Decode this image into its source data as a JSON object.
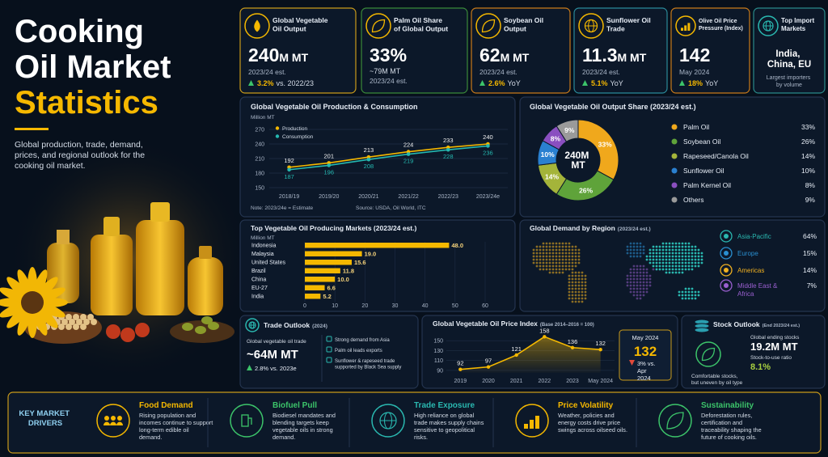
{
  "header": {
    "title_lines": [
      "Cooking",
      "Oil Market",
      "Statistics"
    ],
    "subtitle": "Global production, trade, demand, prices, and regional outlook for the cooking oil market."
  },
  "kpis": [
    {
      "title": "Global Vegetable Oil Output",
      "value": "240",
      "unit": "M MT",
      "note": "2023/24 est.",
      "change": "3.2%",
      "change_note": "vs. 2022/23"
    },
    {
      "title": "Palm Oil Share of Global Output",
      "value": "33%",
      "detail": "~79M MT",
      "note": "2023/24 est."
    },
    {
      "title": "Soybean Oil Output",
      "value": "62",
      "unit": "M MT",
      "note": "2023/24 est.",
      "change": "2.6%",
      "change_note": "YoY"
    },
    {
      "title": "Sunflower Oil Trade",
      "value": "11.3",
      "unit": "M MT",
      "note": "2023/24 est.",
      "change": "5.1%",
      "change_note": "YoY"
    },
    {
      "title": "Olive Oil Price Pressure (Index)",
      "value": "142",
      "note": "May 2024",
      "change": "18%",
      "change_note": "YoY"
    },
    {
      "title": "Top Import Markets",
      "value": "India, China, EU",
      "note": "Largest importers by volume"
    }
  ],
  "chart_data": [
    {
      "type": "line",
      "title": "Global Vegetable Oil Production & Consumption",
      "ylabel": "Million MT",
      "categories": [
        "2018/19",
        "2019/20",
        "2020/21",
        "2021/22",
        "2022/23",
        "2023/24e"
      ],
      "series": [
        {
          "name": "Production",
          "color": "#f5b800",
          "values": [
            192,
            201,
            213,
            224,
            233,
            240
          ]
        },
        {
          "name": "Consumption",
          "color": "#25b8b0",
          "values": [
            187,
            196,
            208,
            219,
            228,
            236
          ]
        }
      ],
      "ylim": [
        150,
        270
      ],
      "yticks": [
        150,
        180,
        210,
        240,
        270
      ],
      "grid": true,
      "legend": "upper left",
      "note": "Note: 2023/24e = Estimate",
      "source": "Source: USDA, Oil World, ITC"
    },
    {
      "type": "donut",
      "title": "Global Vegetable Oil Output Share (2023/24 est.)",
      "center_label": "240M MT",
      "categories": [
        "Palm Oil",
        "Soybean Oil",
        "Rapeseed/Canola Oil",
        "Sunflower Oil",
        "Palm Kernel Oil",
        "Others"
      ],
      "values": [
        33,
        26,
        14,
        10,
        8,
        9
      ],
      "value_labels": [
        "33%",
        "26%",
        "14%",
        "10%",
        "8%",
        "9%"
      ],
      "colors": [
        "#f0a81c",
        "#5fa33a",
        "#a4b43a",
        "#2a80d0",
        "#8a4fc0",
        "#9a9a9a"
      ]
    },
    {
      "type": "hbar",
      "title": "Top Vegetable Oil Producing Markets (2023/24 est.)",
      "xlabel": "Million MT",
      "categories": [
        "Indonesia",
        "Malaysia",
        "United States",
        "Brazil",
        "China",
        "EU-27",
        "India"
      ],
      "values": [
        48,
        19,
        15.6,
        11.8,
        10,
        6.6,
        5.2
      ],
      "value_labels": [
        "48.0",
        "19.0",
        "15.6",
        "11.8",
        "10.0",
        "6.6",
        "5.2"
      ],
      "color": "#f5b800",
      "xlim": [
        0,
        60
      ],
      "xticks": [
        0,
        10,
        20,
        30,
        40,
        50,
        60
      ]
    },
    {
      "type": "map",
      "title": "Global Demand by Region",
      "subtitle": "(2023/24 est.)",
      "categories": [
        "Asia-Pacific",
        "Europe",
        "Americas",
        "Middle East & Africa"
      ],
      "values": [
        64,
        15,
        14,
        7
      ],
      "value_labels": [
        "64%",
        "15%",
        "14%",
        "7%"
      ],
      "colors": [
        "#2ab8b0",
        "#2a8fd0",
        "#f0b020",
        "#9a5fd0"
      ]
    },
    {
      "type": "area",
      "title": "Global Vegetable Oil Price Index",
      "subtitle": "(Base 2014–2016 = 100)",
      "categories": [
        "2019",
        "2020",
        "2021",
        "2022",
        "2023",
        "May 2024"
      ],
      "values": [
        92,
        97,
        121,
        158,
        136,
        132
      ],
      "color": "#f5b800",
      "ylim": [
        85,
        165
      ],
      "yticks": [
        90,
        110,
        130,
        150
      ],
      "grid": true,
      "callout": {
        "label": "May 2024",
        "value": "132",
        "change": "3% vs. Apr 2024"
      }
    }
  ],
  "trade": {
    "title": "Trade Outlook",
    "title_note": "(2024)",
    "label": "Global vegetable oil trade",
    "value": "~64M MT",
    "change": "2.8% vs. 2023e",
    "bullets": [
      "Strong demand from Asia",
      "Palm oil leads exports",
      "Sunflower & rapeseed trade supported by Black Sea supply"
    ]
  },
  "stock": {
    "title": "Stock Outlook",
    "title_note": "(End 2023/24 est.)",
    "label": "Global ending stocks",
    "value": "19.2M MT",
    "ratio_label": "Stock-to-use ratio",
    "ratio": "8.1%",
    "note": "Comfortable stocks, but uneven by oil type"
  },
  "drivers": {
    "title": "KEY MARKET DRIVERS",
    "items": [
      {
        "title": "Food Demand",
        "text": "Rising population and incomes continue to support long-term edible oil demand."
      },
      {
        "title": "Biofuel Pull",
        "text": "Biodiesel mandates and blending targets keep vegetable oils in strong demand."
      },
      {
        "title": "Trade Exposure",
        "text": "High reliance on global trade makes supply chains sensitive to geopolitical risks."
      },
      {
        "title": "Price Volatility",
        "text": "Weather, policies and energy costs drive price swings across oilseed oils."
      },
      {
        "title": "Sustainability",
        "text": "Deforestation rules, certification and traceability shaping the future of cooking oils."
      }
    ]
  }
}
